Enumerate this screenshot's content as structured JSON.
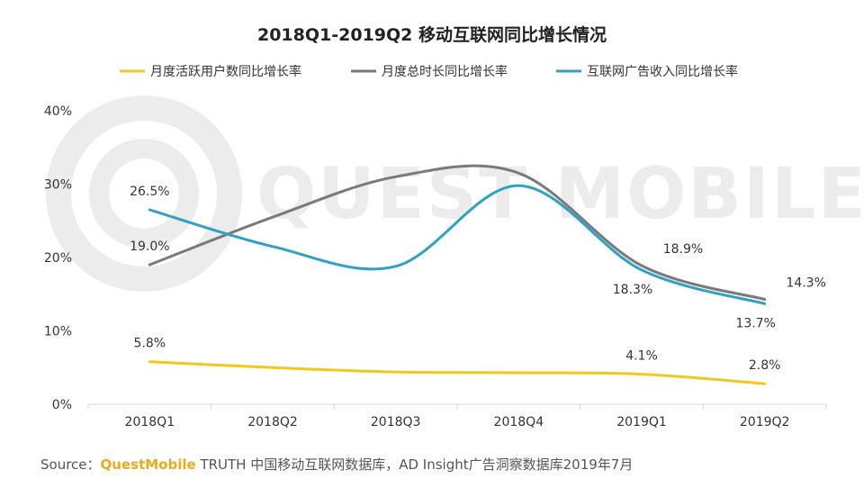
{
  "chart_data": {
    "type": "line",
    "title": "2018Q1-2019Q2 移动互联网同比增长情况",
    "categories": [
      "2018Q1",
      "2018Q2",
      "2018Q3",
      "2018Q4",
      "2019Q1",
      "2019Q2"
    ],
    "ylim": [
      0,
      40
    ],
    "yticks": [
      "0%",
      "10%",
      "20%",
      "30%",
      "40%"
    ],
    "yticks_values": [
      0,
      10,
      20,
      30,
      40
    ],
    "legend_position": "top",
    "series": [
      {
        "name": "月度活跃用户数同比增长率",
        "color": "#f2c81c",
        "values": [
          5.8,
          5.0,
          4.4,
          4.3,
          4.1,
          2.8
        ],
        "labels": [
          "5.8%",
          null,
          null,
          null,
          "4.1%",
          "2.8%"
        ]
      },
      {
        "name": "月度总时长同比增长率",
        "color": "#7a7a7a",
        "values": [
          19.0,
          25.5,
          31.0,
          31.5,
          18.9,
          14.3
        ],
        "labels": [
          "19.0%",
          null,
          null,
          null,
          "18.9%",
          "14.3%"
        ]
      },
      {
        "name": "互联网广告收入同比增长率",
        "color": "#2fa1c6",
        "values": [
          26.5,
          21.5,
          18.8,
          29.8,
          18.3,
          13.7
        ],
        "labels": [
          "26.5%",
          null,
          null,
          null,
          "18.3%",
          "13.7%"
        ]
      }
    ]
  },
  "watermark": "QUEST MOBILE",
  "source": {
    "prefix": "Source：",
    "brand": "QuestMobile",
    "text": " TRUTH 中国移动互联网数据库，AD Insight广告洞察数据库2019年7月"
  }
}
